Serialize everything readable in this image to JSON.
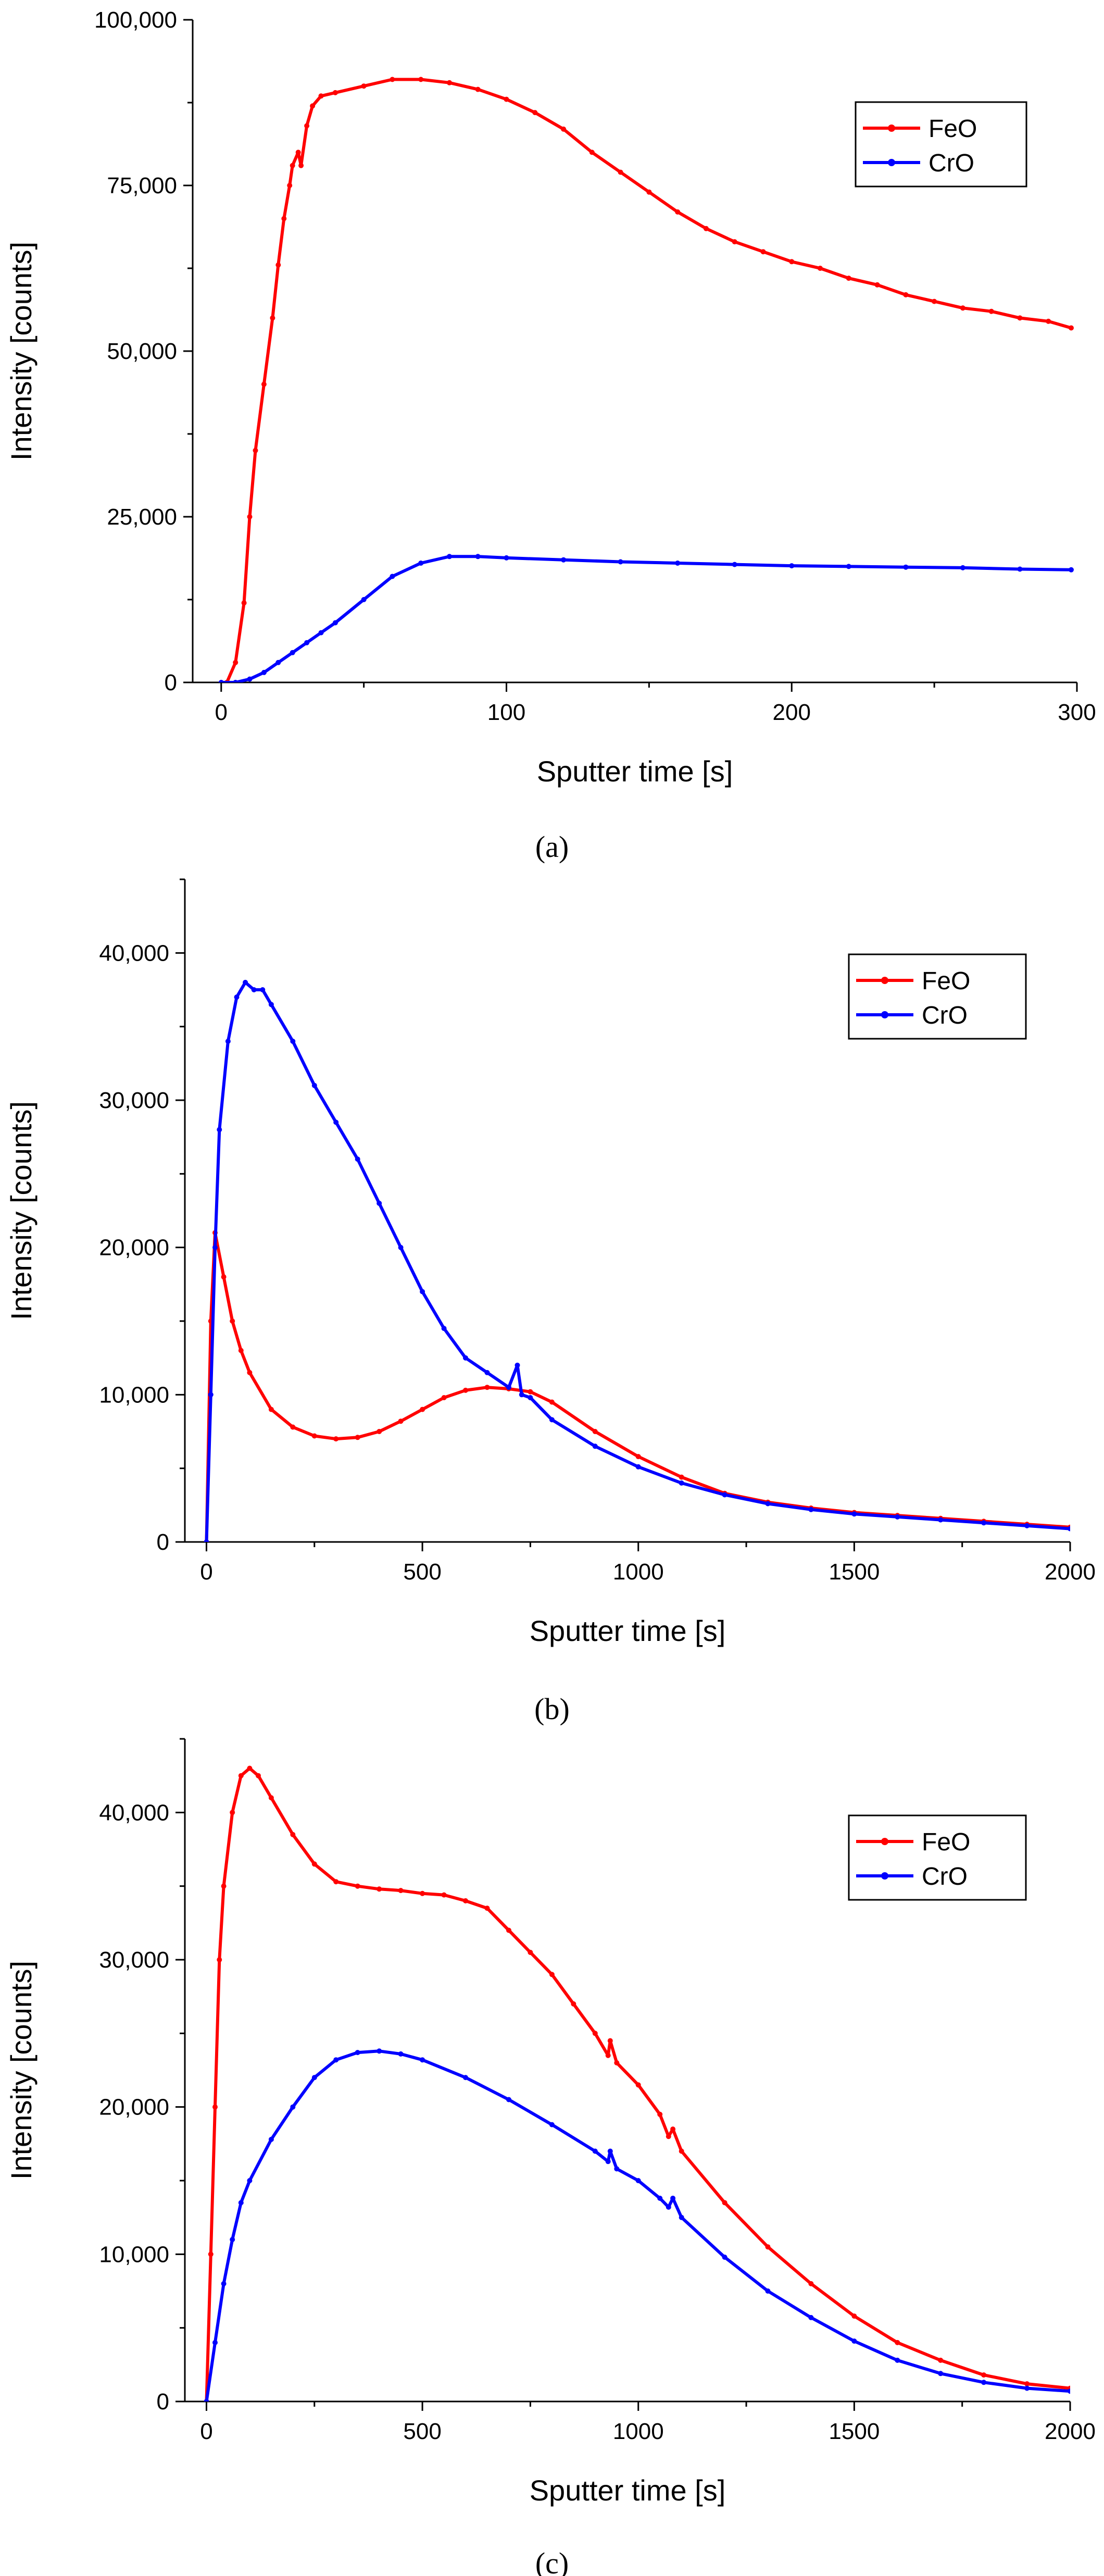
{
  "chart_data": [
    {
      "type": "line",
      "caption": "(a)",
      "xlabel": "Sputter time [s]",
      "ylabel": "Intensity [counts]",
      "xlim": [
        -10,
        300
      ],
      "ylim": [
        0,
        100000
      ],
      "xticks": [
        0,
        100,
        200,
        300
      ],
      "xtick_labels": [
        "0",
        "100",
        "200",
        "300"
      ],
      "yticks": [
        0,
        25000,
        50000,
        75000,
        100000
      ],
      "ytick_labels": [
        "0",
        "25,000",
        "50,000",
        "75,000",
        "100,000"
      ],
      "legend": [
        "FeO",
        "CrO"
      ],
      "legend_position": "top-right",
      "series": [
        {
          "name": "FeO",
          "color": "#ff0000",
          "x": [
            2,
            5,
            8,
            10,
            12,
            15,
            18,
            20,
            22,
            24,
            25,
            27,
            28,
            30,
            32,
            35,
            40,
            50,
            60,
            70,
            80,
            90,
            100,
            110,
            120,
            130,
            140,
            150,
            160,
            170,
            180,
            190,
            200,
            210,
            220,
            230,
            240,
            250,
            260,
            270,
            280,
            290,
            298
          ],
          "y": [
            0,
            3000,
            12000,
            25000,
            35000,
            45000,
            55000,
            63000,
            70000,
            75000,
            78000,
            80000,
            78000,
            84000,
            87000,
            88500,
            89000,
            90000,
            91000,
            91000,
            90500,
            89500,
            88000,
            86000,
            83500,
            80000,
            77000,
            74000,
            71000,
            68500,
            66500,
            65000,
            63500,
            62500,
            61000,
            60000,
            58500,
            57500,
            56500,
            56000,
            55000,
            54500,
            53500
          ]
        },
        {
          "name": "CrO",
          "color": "#0000ff",
          "x": [
            0,
            5,
            10,
            15,
            20,
            25,
            30,
            35,
            40,
            50,
            60,
            70,
            80,
            90,
            100,
            120,
            140,
            160,
            180,
            200,
            220,
            240,
            260,
            280,
            298
          ],
          "y": [
            0,
            0,
            500,
            1500,
            3000,
            4500,
            6000,
            7500,
            9000,
            12500,
            16000,
            18000,
            19000,
            19000,
            18800,
            18500,
            18200,
            18000,
            17800,
            17600,
            17500,
            17400,
            17300,
            17100,
            17000
          ]
        }
      ]
    },
    {
      "type": "line",
      "caption": "(b)",
      "xlabel": "Sputter time [s]",
      "ylabel": "Intensity [counts]",
      "xlim": [
        -50,
        2000
      ],
      "ylim": [
        0,
        45000
      ],
      "xticks": [
        0,
        500,
        1000,
        1500,
        2000
      ],
      "xtick_labels": [
        "0",
        "500",
        "1000",
        "1500",
        "2000"
      ],
      "yticks": [
        0,
        10000,
        20000,
        30000,
        40000
      ],
      "ytick_labels": [
        "0",
        "10,000",
        "20,000",
        "30,000",
        "40,000"
      ],
      "legend": [
        "FeO",
        "CrO"
      ],
      "legend_position": "top-right",
      "series": [
        {
          "name": "FeO",
          "color": "#ff0000",
          "x": [
            0,
            10,
            20,
            40,
            60,
            80,
            100,
            150,
            200,
            250,
            300,
            350,
            400,
            450,
            500,
            550,
            600,
            650,
            700,
            750,
            800,
            900,
            1000,
            1100,
            1200,
            1300,
            1400,
            1500,
            1600,
            1700,
            1800,
            1900,
            2000
          ],
          "y": [
            0,
            15000,
            21000,
            18000,
            15000,
            13000,
            11500,
            9000,
            7800,
            7200,
            7000,
            7100,
            7500,
            8200,
            9000,
            9800,
            10300,
            10500,
            10400,
            10200,
            9500,
            7500,
            5800,
            4400,
            3300,
            2700,
            2300,
            2000,
            1800,
            1600,
            1400,
            1200,
            1000
          ]
        },
        {
          "name": "CrO",
          "color": "#0000ff",
          "x": [
            0,
            10,
            20,
            30,
            50,
            70,
            90,
            110,
            130,
            150,
            200,
            250,
            300,
            350,
            400,
            450,
            500,
            550,
            600,
            650,
            700,
            720,
            730,
            750,
            800,
            900,
            1000,
            1100,
            1200,
            1300,
            1400,
            1500,
            1600,
            1700,
            1800,
            1900,
            2000
          ],
          "y": [
            0,
            10000,
            20000,
            28000,
            34000,
            37000,
            38000,
            37500,
            37500,
            36500,
            34000,
            31000,
            28500,
            26000,
            23000,
            20000,
            17000,
            14500,
            12500,
            11500,
            10500,
            12000,
            10000,
            9800,
            8300,
            6500,
            5100,
            4000,
            3200,
            2600,
            2200,
            1900,
            1700,
            1500,
            1300,
            1100,
            900
          ]
        }
      ]
    },
    {
      "type": "line",
      "caption": "(c)",
      "xlabel": "Sputter time [s]",
      "ylabel": "Intensity [counts]",
      "xlim": [
        -50,
        2000
      ],
      "ylim": [
        0,
        45000
      ],
      "xticks": [
        0,
        500,
        1000,
        1500,
        2000
      ],
      "xtick_labels": [
        "0",
        "500",
        "1000",
        "1500",
        "2000"
      ],
      "yticks": [
        0,
        10000,
        20000,
        30000,
        40000
      ],
      "ytick_labels": [
        "0",
        "10,000",
        "20,000",
        "30,000",
        "40,000"
      ],
      "legend": [
        "FeO",
        "CrO"
      ],
      "legend_position": "top-right",
      "series": [
        {
          "name": "FeO",
          "color": "#ff0000",
          "x": [
            0,
            10,
            20,
            30,
            40,
            60,
            80,
            100,
            120,
            150,
            200,
            250,
            300,
            350,
            400,
            450,
            500,
            550,
            600,
            650,
            700,
            750,
            800,
            850,
            900,
            930,
            935,
            950,
            1000,
            1050,
            1070,
            1080,
            1100,
            1200,
            1300,
            1400,
            1500,
            1600,
            1700,
            1800,
            1900,
            2000
          ],
          "y": [
            0,
            10000,
            20000,
            30000,
            35000,
            40000,
            42500,
            43000,
            42500,
            41000,
            38500,
            36500,
            35300,
            35000,
            34800,
            34700,
            34500,
            34400,
            34000,
            33500,
            32000,
            30500,
            29000,
            27000,
            25000,
            23500,
            24500,
            23000,
            21500,
            19500,
            18000,
            18500,
            17000,
            13500,
            10500,
            8000,
            5800,
            4000,
            2800,
            1800,
            1200,
            900
          ]
        },
        {
          "name": "CrO",
          "color": "#0000ff",
          "x": [
            0,
            20,
            40,
            60,
            80,
            100,
            150,
            200,
            250,
            300,
            350,
            400,
            450,
            500,
            600,
            700,
            800,
            900,
            930,
            935,
            950,
            1000,
            1050,
            1070,
            1080,
            1100,
            1200,
            1300,
            1400,
            1500,
            1600,
            1700,
            1800,
            1900,
            2000
          ],
          "y": [
            0,
            4000,
            8000,
            11000,
            13500,
            15000,
            17800,
            20000,
            22000,
            23200,
            23700,
            23800,
            23600,
            23200,
            22000,
            20500,
            18800,
            17000,
            16300,
            17000,
            15800,
            15000,
            13800,
            13200,
            13800,
            12500,
            9800,
            7500,
            5700,
            4100,
            2800,
            1900,
            1300,
            900,
            700
          ]
        }
      ]
    }
  ]
}
